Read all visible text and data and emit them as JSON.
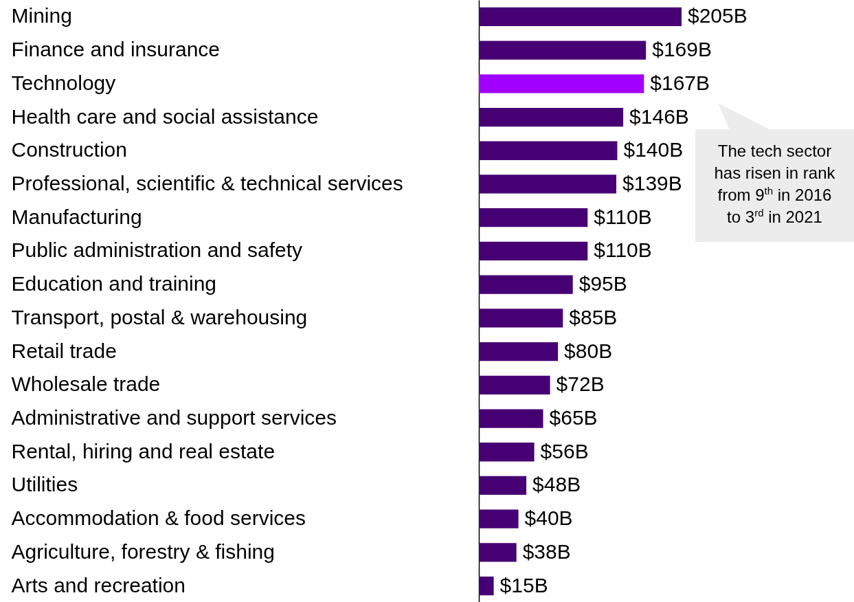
{
  "chart_data": {
    "type": "bar",
    "orientation": "horizontal",
    "categories": [
      "Mining",
      "Finance and insurance",
      "Technology",
      "Health care and social assistance",
      "Construction",
      "Professional, scientific & technical services",
      "Manufacturing",
      "Public administration and safety",
      "Education and training",
      "Transport, postal & warehousing",
      "Retail trade",
      "Wholesale trade",
      "Administrative and support services",
      "Rental, hiring and real estate",
      "Utilities",
      "Accommodation & food services",
      "Agriculture, forestry & fishing",
      "Arts and recreation"
    ],
    "values": [
      205,
      169,
      167,
      146,
      140,
      139,
      110,
      110,
      95,
      85,
      80,
      72,
      65,
      56,
      48,
      40,
      38,
      15
    ],
    "colors": [
      "#460073",
      "#460073",
      "#a100ff",
      "#460073",
      "#460073",
      "#460073",
      "#460073",
      "#460073",
      "#460073",
      "#460073",
      "#460073",
      "#460073",
      "#460073",
      "#460073",
      "#460073",
      "#460073",
      "#460073",
      "#460073"
    ],
    "value_labels": [
      "$205B",
      "$169B",
      "$167B",
      "$146B",
      "$140B",
      "$139B",
      "$110B",
      "$110B",
      "$95B",
      "$85B",
      "$80B",
      "$72B",
      "$65B",
      "$56B",
      "$48B",
      "$40B",
      "$38B",
      "$15B"
    ],
    "annotations": [
      "The tech sector has risen in rank from 9$^{th}$ in 2016 to 3$^{rd}$ in 2021"
    ]
  }
}
